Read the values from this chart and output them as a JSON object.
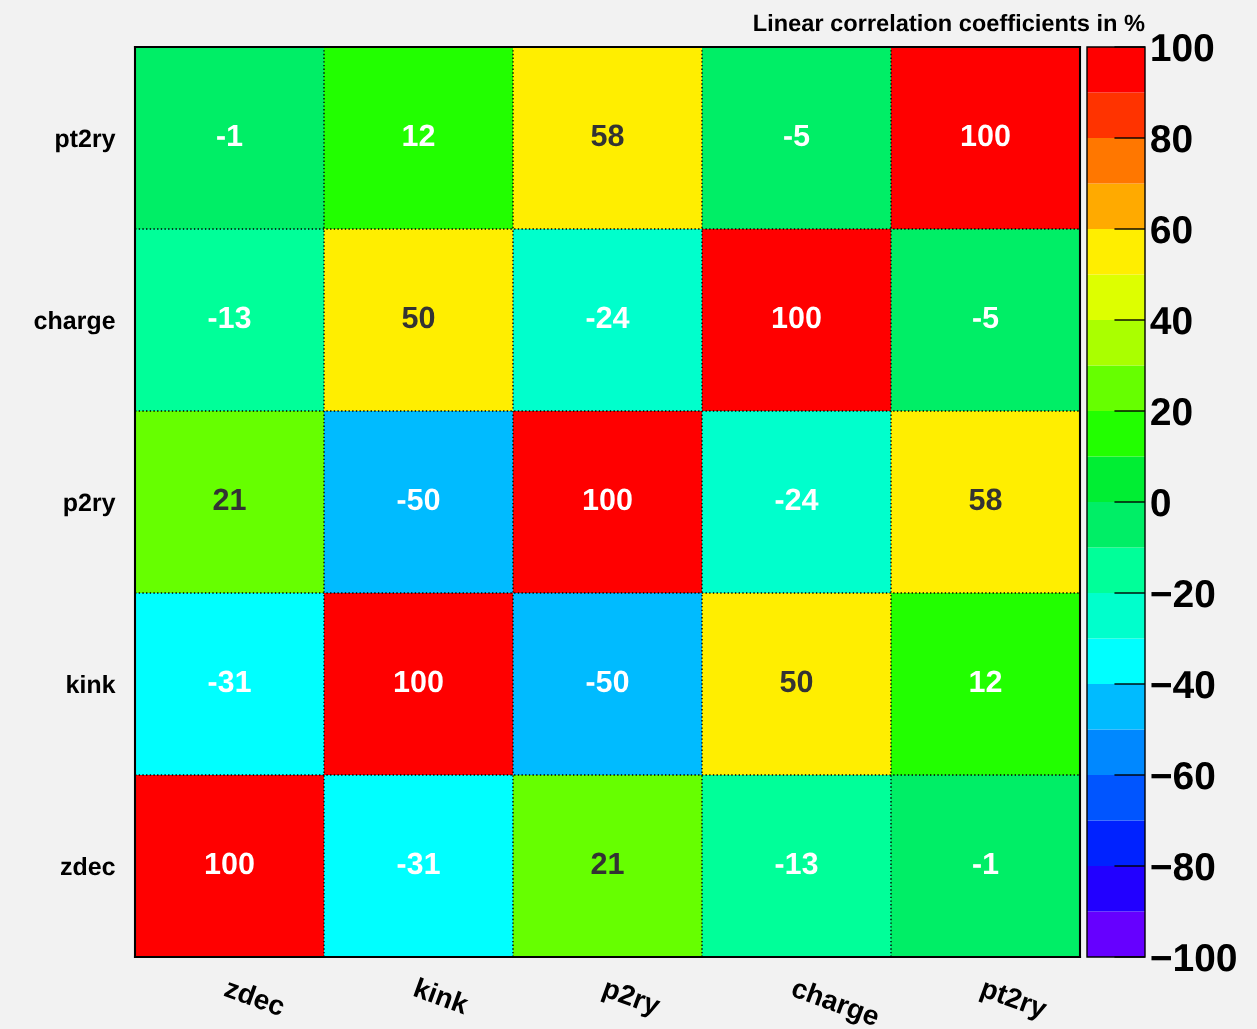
{
  "chart_data": {
    "type": "heatmap",
    "title": "Linear correlation coefficients in %",
    "categories": [
      "zdec",
      "kink",
      "p2ry",
      "charge",
      "pt2ry"
    ],
    "y_categories": [
      "pt2ry",
      "charge",
      "p2ry",
      "kink",
      "zdec"
    ],
    "cells": [
      [
        -1,
        12,
        58,
        -5,
        100
      ],
      [
        -13,
        50,
        -24,
        100,
        -5
      ],
      [
        21,
        -50,
        100,
        -24,
        58
      ],
      [
        -31,
        100,
        -50,
        50,
        12
      ],
      [
        100,
        -31,
        21,
        -13,
        -1
      ]
    ],
    "data_labels": true,
    "grid": true,
    "clim": [
      -100,
      100
    ],
    "cticks": [
      {
        "value": -100,
        "label": "−100"
      },
      {
        "value": -80,
        "label": "−80"
      },
      {
        "value": -60,
        "label": "−60"
      },
      {
        "value": -40,
        "label": "−40"
      },
      {
        "value": -20,
        "label": "−20"
      },
      0,
      20,
      40,
      60,
      80,
      100
    ]
  }
}
